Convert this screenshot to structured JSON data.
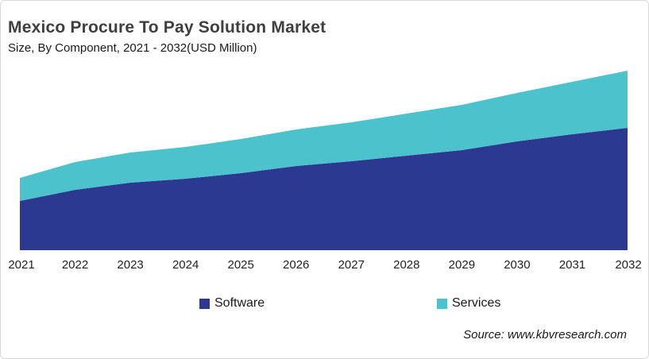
{
  "header": {
    "title": "Mexico Procure To Pay Solution Market",
    "subtitle": "Size, By Component, 2021 - 2032(USD Million)"
  },
  "chart_data": {
    "type": "area",
    "stacked": true,
    "x": [
      2021,
      2022,
      2023,
      2024,
      2025,
      2026,
      2027,
      2028,
      2029,
      2030,
      2031,
      2032
    ],
    "series": [
      {
        "name": "Software",
        "color": "#2b3990",
        "values": [
          62,
          76,
          85,
          90,
          97,
          106,
          112,
          119,
          126,
          137,
          146,
          154
        ]
      },
      {
        "name": "Services",
        "color": "#4cc3cc",
        "values": [
          29,
          35,
          38,
          40,
          43,
          46,
          49,
          53,
          57,
          61,
          66,
          72
        ]
      }
    ],
    "title": "Mexico Procure To Pay Solution Market",
    "subtitle": "Size, By Component, 2021 - 2032(USD Million)",
    "xlabel": "",
    "ylabel": "",
    "ylim": [
      0,
      240
    ],
    "value_axis_visible": false,
    "grid": false,
    "legend_position": "bottom",
    "units_note": "y-axis is unlabeled in the figure; series values are relative estimates read from the plot"
  },
  "legend": {
    "items": [
      {
        "label": "Software",
        "color": "#2b3990"
      },
      {
        "label": "Services",
        "color": "#4cc3cc"
      }
    ]
  },
  "source": {
    "text": "Source: www.kbvresearch.com"
  }
}
